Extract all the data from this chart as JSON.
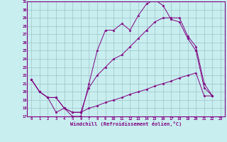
{
  "xlabel": "Windchill (Refroidissement éolien,°C)",
  "x_ticks": [
    0,
    1,
    2,
    3,
    4,
    5,
    6,
    7,
    8,
    9,
    10,
    11,
    12,
    13,
    14,
    15,
    16,
    17,
    18,
    19,
    20,
    21,
    22,
    23
  ],
  "ylim": [
    17,
    31
  ],
  "xlim": [
    -0.5,
    23.5
  ],
  "y_ticks": [
    17,
    18,
    19,
    20,
    21,
    22,
    23,
    24,
    25,
    26,
    27,
    28,
    29,
    30,
    31
  ],
  "bg_color": "#c8eef0",
  "line_color": "#800080",
  "grid_color": "#9fc4c7",
  "line1_x": [
    0,
    1,
    2,
    3,
    4,
    5,
    6,
    7,
    8,
    9,
    10,
    11,
    12,
    13,
    14,
    15,
    16,
    17,
    18,
    19,
    20,
    21,
    22
  ],
  "line1_y": [
    21.5,
    20.0,
    19.3,
    17.5,
    18.0,
    17.0,
    17.0,
    21.0,
    25.0,
    27.5,
    27.5,
    28.3,
    27.5,
    29.3,
    30.7,
    31.2,
    30.5,
    28.8,
    28.5,
    26.5,
    25.0,
    20.5,
    19.5
  ],
  "line2_x": [
    0,
    1,
    2,
    3,
    4,
    5,
    6,
    7,
    8,
    9,
    10,
    11,
    12,
    13,
    14,
    15,
    16,
    17,
    18,
    19,
    20,
    21,
    22
  ],
  "line2_y": [
    21.5,
    20.0,
    19.3,
    19.3,
    18.0,
    17.5,
    17.5,
    20.5,
    22.0,
    23.0,
    24.0,
    24.5,
    25.5,
    26.5,
    27.5,
    28.5,
    29.0,
    29.0,
    29.0,
    26.8,
    25.5,
    21.0,
    19.5
  ],
  "line3_x": [
    0,
    1,
    2,
    3,
    4,
    5,
    6,
    7,
    8,
    9,
    10,
    11,
    12,
    13,
    14,
    15,
    16,
    17,
    18,
    19,
    20,
    21,
    22
  ],
  "line3_y": [
    21.5,
    20.0,
    19.3,
    19.3,
    18.0,
    17.5,
    17.5,
    18.0,
    18.3,
    18.7,
    19.0,
    19.3,
    19.7,
    20.0,
    20.3,
    20.7,
    21.0,
    21.3,
    21.7,
    22.0,
    22.3,
    19.5,
    19.5
  ]
}
